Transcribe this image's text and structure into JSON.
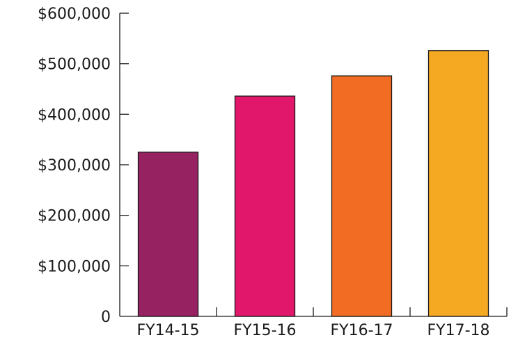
{
  "chart_data": {
    "type": "bar",
    "title": "",
    "xlabel": "",
    "ylabel": "",
    "categories": [
      "FY14-15",
      "FY15-16",
      "FY16-17",
      "FY17-18"
    ],
    "values": [
      325000,
      436000,
      476000,
      526000
    ],
    "colors": [
      "#962262",
      "#e0176a",
      "#f26c23",
      "#f5a923"
    ],
    "ylim": [
      0,
      600000
    ],
    "yticks": [
      0,
      100000,
      200000,
      300000,
      400000,
      500000,
      600000
    ],
    "ytick_labels": [
      "0",
      "$100,000",
      "$200,000",
      "$300,000",
      "$400,000",
      "$500,000",
      "$600,000"
    ],
    "grid": false,
    "legend": "none"
  }
}
